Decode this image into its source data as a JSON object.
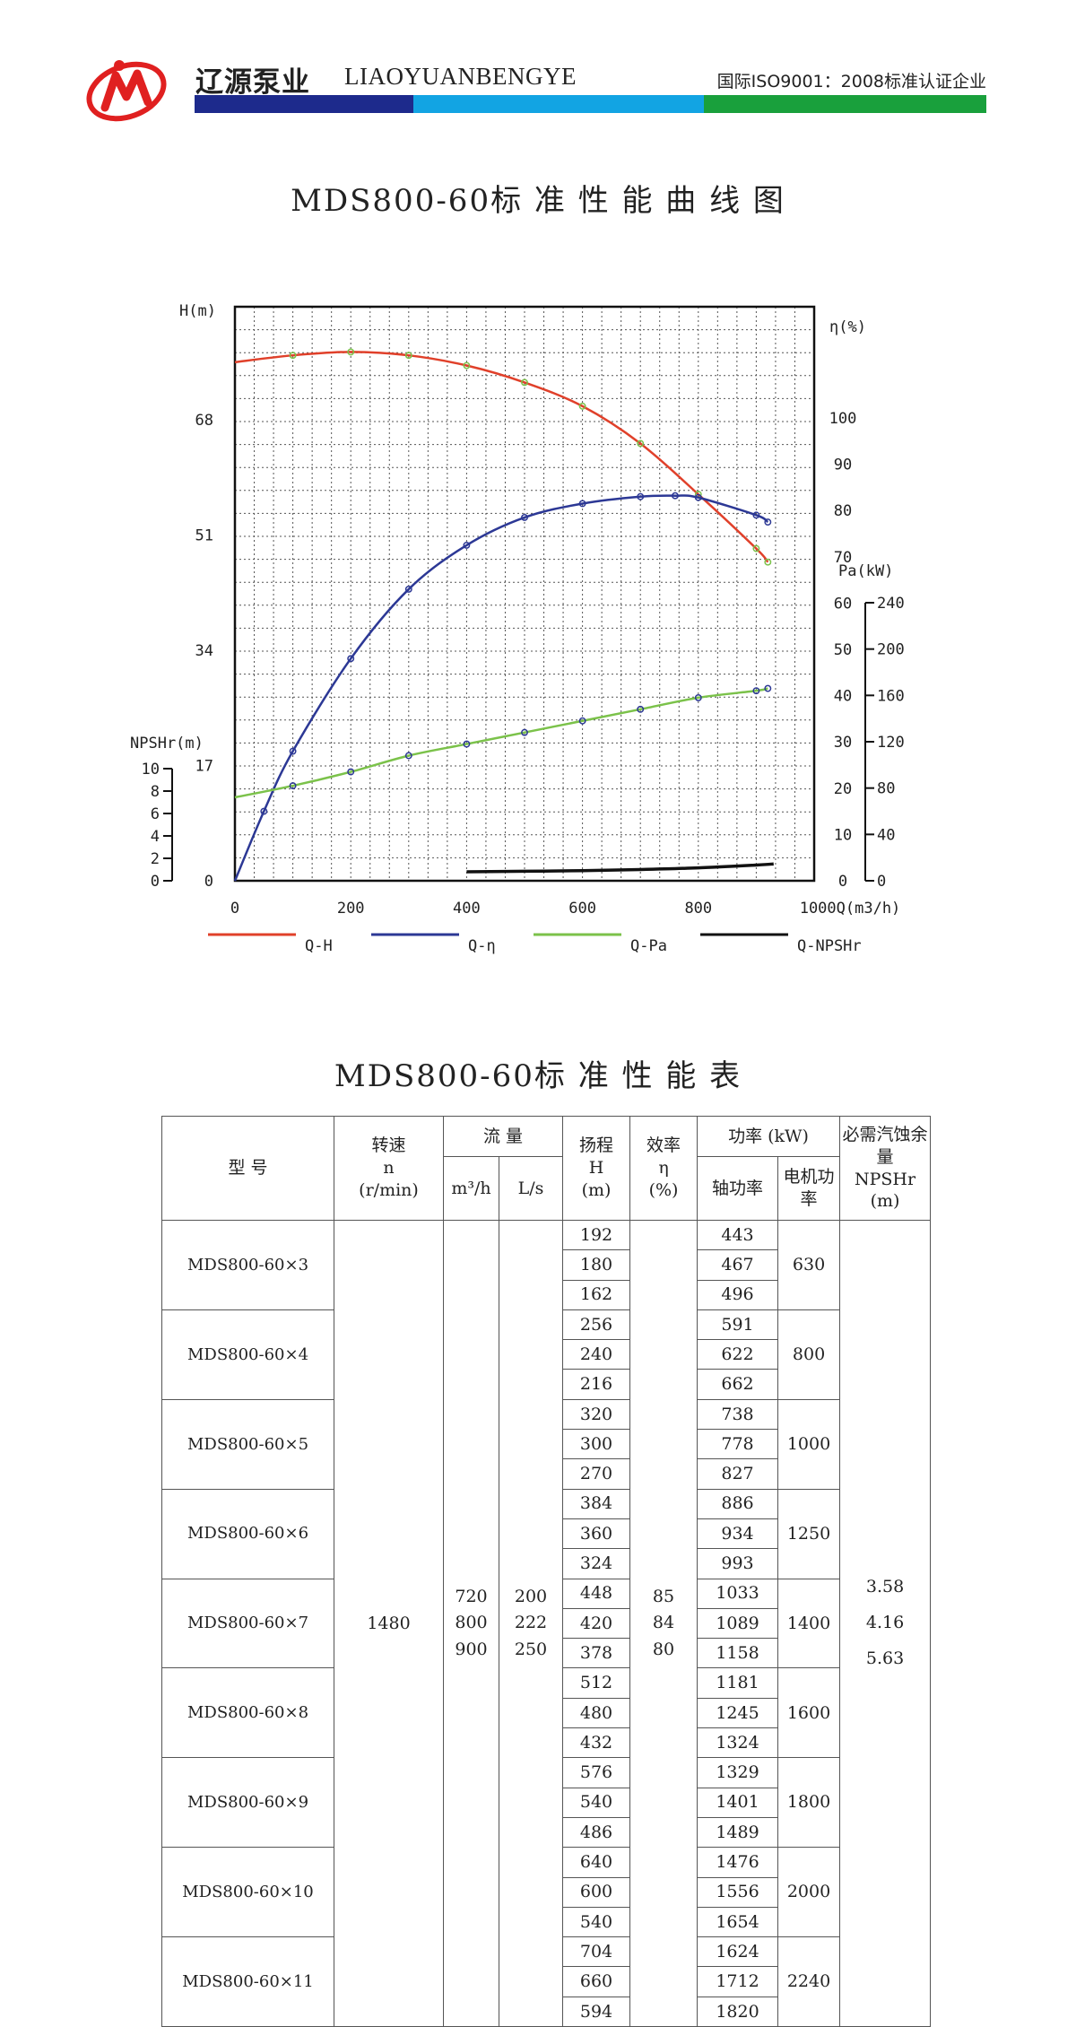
{
  "header": {
    "brand_cn": "辽源泵业",
    "brand_en": "LIAOYUANBENGYE",
    "cert": "国际ISO9001：2008标准认证企业",
    "colors": {
      "blue": "#1d2a8c",
      "cyan": "#12a4e3",
      "green": "#19a03c",
      "logo": "#e02020"
    }
  },
  "chart_title": "MDS800-60标 准 性 能 曲 线 图",
  "chart_data": {
    "type": "line",
    "title": "MDS800-60标准性能曲线图",
    "xlabel": "Q(m3/h)",
    "xlim": [
      0,
      1000
    ],
    "x_ticks": [
      0,
      200,
      400,
      600,
      800,
      1000
    ],
    "grid": true,
    "legend_position": "bottom",
    "axes": {
      "H": {
        "label": "H(m)",
        "range": [
          0,
          85
        ],
        "ticks": [
          0,
          17,
          34,
          51,
          68
        ]
      },
      "eta": {
        "label": "η(%)",
        "range": [
          0,
          125
        ],
        "ticks": [
          0,
          10,
          20,
          30,
          40,
          50,
          60,
          70,
          80,
          90,
          100
        ]
      },
      "Pa": {
        "label": "Pa(kW)",
        "range": [
          0,
          240
        ],
        "ticks": [
          0,
          40,
          80,
          120,
          160,
          200,
          240
        ]
      },
      "NPSHr": {
        "label": "NPSHr(m)",
        "range": [
          0,
          10
        ],
        "ticks": [
          0,
          2,
          4,
          6,
          8,
          10
        ]
      }
    },
    "series": [
      {
        "name": "Q-H",
        "axis": "H",
        "color": "#e0402a",
        "x": [
          0,
          100,
          200,
          300,
          400,
          500,
          600,
          700,
          800,
          900,
          920
        ],
        "y": [
          76.5,
          77.5,
          78,
          77.5,
          76,
          73.5,
          70,
          64.5,
          57,
          49,
          47
        ]
      },
      {
        "name": "Q-η",
        "axis": "eta",
        "color": "#2c3895",
        "x": [
          0,
          50,
          100,
          200,
          300,
          400,
          500,
          600,
          700,
          760,
          800,
          900,
          920
        ],
        "y": [
          0,
          15,
          28,
          48,
          63,
          72.5,
          78.5,
          81.5,
          83,
          83.2,
          82.8,
          79,
          77.5
        ]
      },
      {
        "name": "Q-Pa",
        "axis": "Pa",
        "color": "#7bc24a",
        "x": [
          0,
          100,
          200,
          300,
          400,
          500,
          600,
          700,
          800,
          900,
          920
        ],
        "y": [
          72,
          82,
          94,
          108,
          118,
          128,
          138,
          148,
          158,
          164,
          166
        ]
      },
      {
        "name": "Q-NPSHr",
        "axis": "NPSHr",
        "color": "#111111",
        "x": [
          400,
          500,
          600,
          700,
          800,
          900,
          930
        ],
        "y": [
          0.8,
          0.85,
          0.9,
          1.0,
          1.15,
          1.4,
          1.5
        ]
      }
    ]
  },
  "table_title": "MDS800-60标 准 性 能 表",
  "table": {
    "headers": {
      "model": "型 号",
      "speed": "转速",
      "speed_sym": "n",
      "speed_unit": "(r/min)",
      "flow": "流 量",
      "flow_m3h": "m³/h",
      "flow_ls": "L/s",
      "head": "扬程",
      "head_sym": "H",
      "head_unit": "(m)",
      "eff": "效率",
      "eff_sym": "η",
      "eff_unit": "(%)",
      "power": "功率 (kW)",
      "shaft_power": "轴功率",
      "motor_power": "电机功率",
      "npshr": "必需汽蚀余量",
      "npshr_sym": "NPSHr",
      "npshr_unit": "(m)"
    },
    "speed_value": "1480",
    "flow_m3h_values": [
      "720",
      "800",
      "900"
    ],
    "flow_ls_values": [
      "200",
      "222",
      "250"
    ],
    "eff_values": [
      "85",
      "84",
      "80"
    ],
    "npshr_values": [
      "3.58",
      "4.16",
      "5.63"
    ],
    "models": [
      {
        "name": "MDS800-60×3",
        "heads": [
          "192",
          "180",
          "162"
        ],
        "shaft": [
          "443",
          "467",
          "496"
        ],
        "motor": "630"
      },
      {
        "name": "MDS800-60×4",
        "heads": [
          "256",
          "240",
          "216"
        ],
        "shaft": [
          "591",
          "622",
          "662"
        ],
        "motor": "800"
      },
      {
        "name": "MDS800-60×5",
        "heads": [
          "320",
          "300",
          "270"
        ],
        "shaft": [
          "738",
          "778",
          "827"
        ],
        "motor": "1000"
      },
      {
        "name": "MDS800-60×6",
        "heads": [
          "384",
          "360",
          "324"
        ],
        "shaft": [
          "886",
          "934",
          "993"
        ],
        "motor": "1250"
      },
      {
        "name": "MDS800-60×7",
        "heads": [
          "448",
          "420",
          "378"
        ],
        "shaft": [
          "1033",
          "1089",
          "1158"
        ],
        "motor": "1400"
      },
      {
        "name": "MDS800-60×8",
        "heads": [
          "512",
          "480",
          "432"
        ],
        "shaft": [
          "1181",
          "1245",
          "1324"
        ],
        "motor": "1600"
      },
      {
        "name": "MDS800-60×9",
        "heads": [
          "576",
          "540",
          "486"
        ],
        "shaft": [
          "1329",
          "1401",
          "1489"
        ],
        "motor": "1800"
      },
      {
        "name": "MDS800-60×10",
        "heads": [
          "640",
          "600",
          "540"
        ],
        "shaft": [
          "1476",
          "1556",
          "1654"
        ],
        "motor": "2000"
      },
      {
        "name": "MDS800-60×11",
        "heads": [
          "704",
          "660",
          "594"
        ],
        "shaft": [
          "1624",
          "1712",
          "1820"
        ],
        "motor": "2240"
      }
    ]
  }
}
